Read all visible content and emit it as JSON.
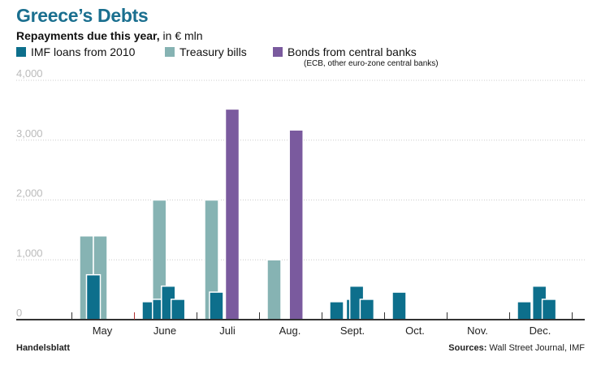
{
  "colors": {
    "imf": "#0d6f8c",
    "tbills": "#86b3b3",
    "bonds": "#7a5a9e",
    "grid": "#cccccc",
    "axis": "#333333",
    "tick_label": "#bbbbbb",
    "title": "#1a6f8f"
  },
  "chart_data": {
    "type": "bar",
    "title": "Greece’s Debts",
    "subtitle_bold": "Repayments due this year,",
    "subtitle_rest": " in € mln",
    "ylim": [
      0,
      4000
    ],
    "yticks": [
      0,
      1000,
      2000,
      3000,
      4000
    ],
    "ytick_labels": [
      "0",
      "1,000",
      "2,000",
      "3,000",
      "4,000"
    ],
    "legend_note": "(ECB, other euro-zone central banks)",
    "categories": [
      "May",
      "June",
      "Juli",
      "Aug.",
      "Sept.",
      "Oct.",
      "Nov.",
      "Dec."
    ],
    "series": [
      {
        "name": "IMF loans from 2010",
        "key": "imf"
      },
      {
        "name": "Treasury bills",
        "key": "tbills"
      },
      {
        "name": "Bonds from central banks",
        "key": "bonds"
      }
    ],
    "bars": [
      {
        "month": "May",
        "series": "tbills",
        "value": 1400,
        "slot": 0
      },
      {
        "month": "May",
        "series": "tbills",
        "value": 1400,
        "slot": 1
      },
      {
        "month": "May",
        "series": "imf",
        "value": 750,
        "slot": 0.5
      },
      {
        "month": "June",
        "series": "imf",
        "value": 300,
        "slot": 0
      },
      {
        "month": "June",
        "series": "tbills",
        "value": 2000,
        "slot": 0.75
      },
      {
        "month": "June",
        "series": "imf",
        "value": 340,
        "slot": 0.75
      },
      {
        "month": "June",
        "series": "imf",
        "value": 560,
        "slot": 1.4
      },
      {
        "month": "June",
        "series": "imf",
        "value": 340,
        "slot": 2.1
      },
      {
        "month": "Juli",
        "series": "tbills",
        "value": 2000,
        "slot": 0
      },
      {
        "month": "Juli",
        "series": "imf",
        "value": 460,
        "slot": 0.35
      },
      {
        "month": "Juli",
        "series": "bonds",
        "value": 3520,
        "slot": 1.5
      },
      {
        "month": "Aug.",
        "series": "tbills",
        "value": 1000,
        "slot": 0
      },
      {
        "month": "Aug.",
        "series": "bonds",
        "value": 3170,
        "slot": 1.6
      },
      {
        "month": "Sept.",
        "series": "imf",
        "value": 300,
        "slot": 0
      },
      {
        "month": "Sept.",
        "series": "imf",
        "value": 340,
        "slot": 1.2
      },
      {
        "month": "Sept.",
        "series": "imf",
        "value": 560,
        "slot": 1.45
      },
      {
        "month": "Sept.",
        "series": "imf",
        "value": 340,
        "slot": 2.2
      },
      {
        "month": "Oct.",
        "series": "imf",
        "value": 460,
        "slot": 0
      },
      {
        "month": "Dec.",
        "series": "imf",
        "value": 300,
        "slot": 0
      },
      {
        "month": "Dec.",
        "series": "imf",
        "value": 560,
        "slot": 1.1
      },
      {
        "month": "Dec.",
        "series": "imf",
        "value": 340,
        "slot": 1.8
      }
    ],
    "footer_left": "Handelsblatt",
    "footer_source_label": "Sources:",
    "footer_source_rest": " Wall Street Journal, IMF"
  }
}
